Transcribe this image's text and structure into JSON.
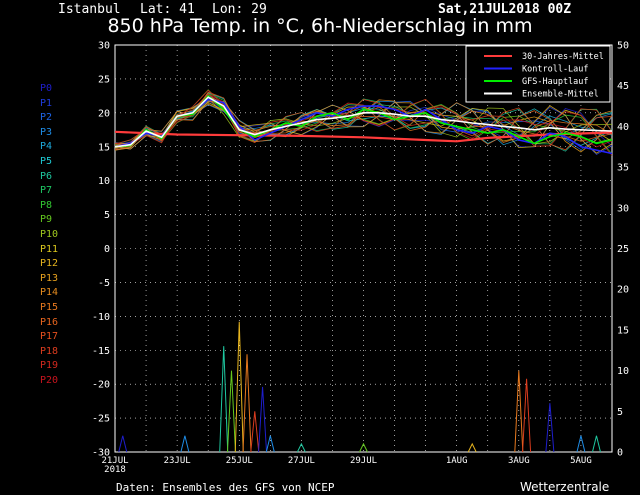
{
  "header": {
    "location": "Istanbul",
    "lat_label": "Lat: 41",
    "lon_label": "Lon: 29",
    "run": "Sat,21JUL2018 00Z",
    "title": "850 hPa Temp. in °C, 6h-Niederschlag in mm"
  },
  "footer": {
    "source": "Daten: Ensembles des GFS von NCEP",
    "brand": "Wetterzentrale"
  },
  "colors": {
    "background": "#000000",
    "mittel30": "#ff3b3b",
    "kontroll": "#2222ff",
    "hauptlauf": "#00ee00",
    "ensemble_mittel": "#ffffff"
  },
  "members": [
    {
      "label": "P0",
      "color": "#1e1ecc"
    },
    {
      "label": "P1",
      "color": "#1e3cdc"
    },
    {
      "label": "P2",
      "color": "#1e64e6"
    },
    {
      "label": "P3",
      "color": "#1e8ce6"
    },
    {
      "label": "P4",
      "color": "#1eaadc"
    },
    {
      "label": "P5",
      "color": "#1ec8d2"
    },
    {
      "label": "P6",
      "color": "#1ec8a0"
    },
    {
      "label": "P7",
      "color": "#1ec864"
    },
    {
      "label": "P8",
      "color": "#32c832"
    },
    {
      "label": "P9",
      "color": "#64c81e"
    },
    {
      "label": "P10",
      "color": "#a0c81e"
    },
    {
      "label": "P11",
      "color": "#dcc81e"
    },
    {
      "label": "P12",
      "color": "#e6b41e"
    },
    {
      "label": "P13",
      "color": "#e6a01e"
    },
    {
      "label": "P14",
      "color": "#e68c1e"
    },
    {
      "label": "P15",
      "color": "#e6781e"
    },
    {
      "label": "P16",
      "color": "#e6641e"
    },
    {
      "label": "P17",
      "color": "#e6501e"
    },
    {
      "label": "P18",
      "color": "#dc3c1e"
    },
    {
      "label": "P19",
      "color": "#d2281e"
    },
    {
      "label": "P20",
      "color": "#c8141e"
    }
  ],
  "chart_data": {
    "type": "line",
    "title": "850 hPa Temp. in °C, 6h-Niederschlag in mm",
    "x_range": [
      "2018-07-21 00Z",
      "2018-08-06 00Z"
    ],
    "x_ticks": [
      "21JUL",
      "23JUL",
      "25JUL",
      "27JUL",
      "29JUL",
      "1AUG",
      "3AUG",
      "5AUG"
    ],
    "x_tick_sublabel": "2018",
    "y_left": {
      "min": -30,
      "max": 30,
      "step": 5,
      "unit": "°C",
      "ticks": [
        "30",
        "25",
        "20",
        "15",
        "10",
        "5",
        "0",
        "-5",
        "-10",
        "-15",
        "-20",
        "-25",
        "-30"
      ]
    },
    "y_right": {
      "min": 0,
      "max": 50,
      "step": 5,
      "unit": "mm",
      "ticks": [
        "50",
        "45",
        "40",
        "35",
        "30",
        "25",
        "20",
        "15",
        "10",
        "5",
        "0"
      ]
    },
    "grid": true,
    "legend_position": "top-right",
    "legend": [
      "30-Jahres-Mittel",
      "Kontroll-Lauf",
      "GFS-Hauptlauf",
      "Ensemble-Mittel"
    ],
    "series": [
      {
        "name": "30-Jahres-Mittel",
        "x_days": [
          0,
          2,
          4,
          6,
          8,
          10,
          11,
          12,
          14,
          16
        ],
        "values": [
          17.2,
          16.8,
          16.7,
          16.6,
          16.4,
          16.0,
          15.8,
          16.3,
          16.8,
          17.1
        ]
      },
      {
        "name": "Kontroll-Lauf",
        "x_days": [
          0,
          0.5,
          1,
          1.5,
          2,
          2.5,
          3,
          3.5,
          4,
          4.5,
          5,
          5.5,
          6,
          6.5,
          7,
          7.5,
          8,
          8.5,
          9,
          9.5,
          10,
          10.5,
          11,
          11.5,
          12,
          12.5,
          13,
          13.5,
          14,
          14.5,
          15,
          15.5,
          16
        ],
        "values": [
          15,
          15.5,
          17,
          16.5,
          19.5,
          20,
          22,
          21.5,
          18,
          16,
          17,
          18,
          19,
          20,
          19.5,
          20.5,
          21,
          21,
          20.5,
          19.5,
          20.5,
          19,
          17.5,
          17,
          18,
          17.5,
          16,
          15.5,
          17,
          16.5,
          15,
          14.5,
          14
        ]
      },
      {
        "name": "GFS-Hauptlauf",
        "x_days": [
          0,
          0.5,
          1,
          1.5,
          2,
          2.5,
          3,
          3.5,
          4,
          4.5,
          5,
          5.5,
          6,
          6.5,
          7,
          7.5,
          8,
          8.5,
          9,
          9.5,
          10,
          10.5,
          11,
          11.5,
          12,
          12.5,
          13,
          13.5,
          14,
          14.5,
          15,
          15.5,
          16
        ],
        "values": [
          15,
          15.2,
          17.5,
          16.2,
          19.5,
          19.8,
          22.5,
          20.5,
          17.5,
          16.5,
          17.5,
          18.5,
          18,
          19.5,
          20,
          19,
          20.5,
          20,
          19,
          19.5,
          20,
          18.5,
          18,
          17.5,
          17,
          17.5,
          16.5,
          15.5,
          16.5,
          17,
          16.5,
          15.5,
          16
        ]
      },
      {
        "name": "Ensemble-Mittel",
        "x_days": [
          0,
          0.5,
          1,
          1.5,
          2,
          2.5,
          3,
          3.5,
          4,
          4.5,
          5,
          5.5,
          6,
          6.5,
          7,
          7.5,
          8,
          8.5,
          9,
          9.5,
          10,
          10.5,
          11,
          11.5,
          12,
          12.5,
          13,
          13.5,
          14,
          14.5,
          15,
          15.5,
          16
        ],
        "values": [
          15,
          15.3,
          17.3,
          16.4,
          19.5,
          20,
          22.3,
          21,
          17.5,
          16.8,
          17.5,
          18,
          18.5,
          19,
          19.2,
          19.5,
          20,
          20,
          19.8,
          19.5,
          19.5,
          19,
          18.8,
          18.5,
          18.3,
          18,
          17.8,
          17.5,
          17.8,
          17.6,
          17.5,
          17.4,
          17.3
        ]
      }
    ],
    "precipitation_mm": {
      "x_days": [
        0.25,
        2.25,
        3.5,
        3.75,
        4,
        4.25,
        4.5,
        4.75,
        5,
        6,
        8,
        11.5,
        13,
        13.25,
        14,
        15,
        15.5
      ],
      "max_values": [
        2,
        2,
        13,
        10,
        16,
        12,
        5,
        8,
        2,
        1,
        1,
        1,
        10,
        9,
        6,
        2,
        2
      ]
    }
  }
}
